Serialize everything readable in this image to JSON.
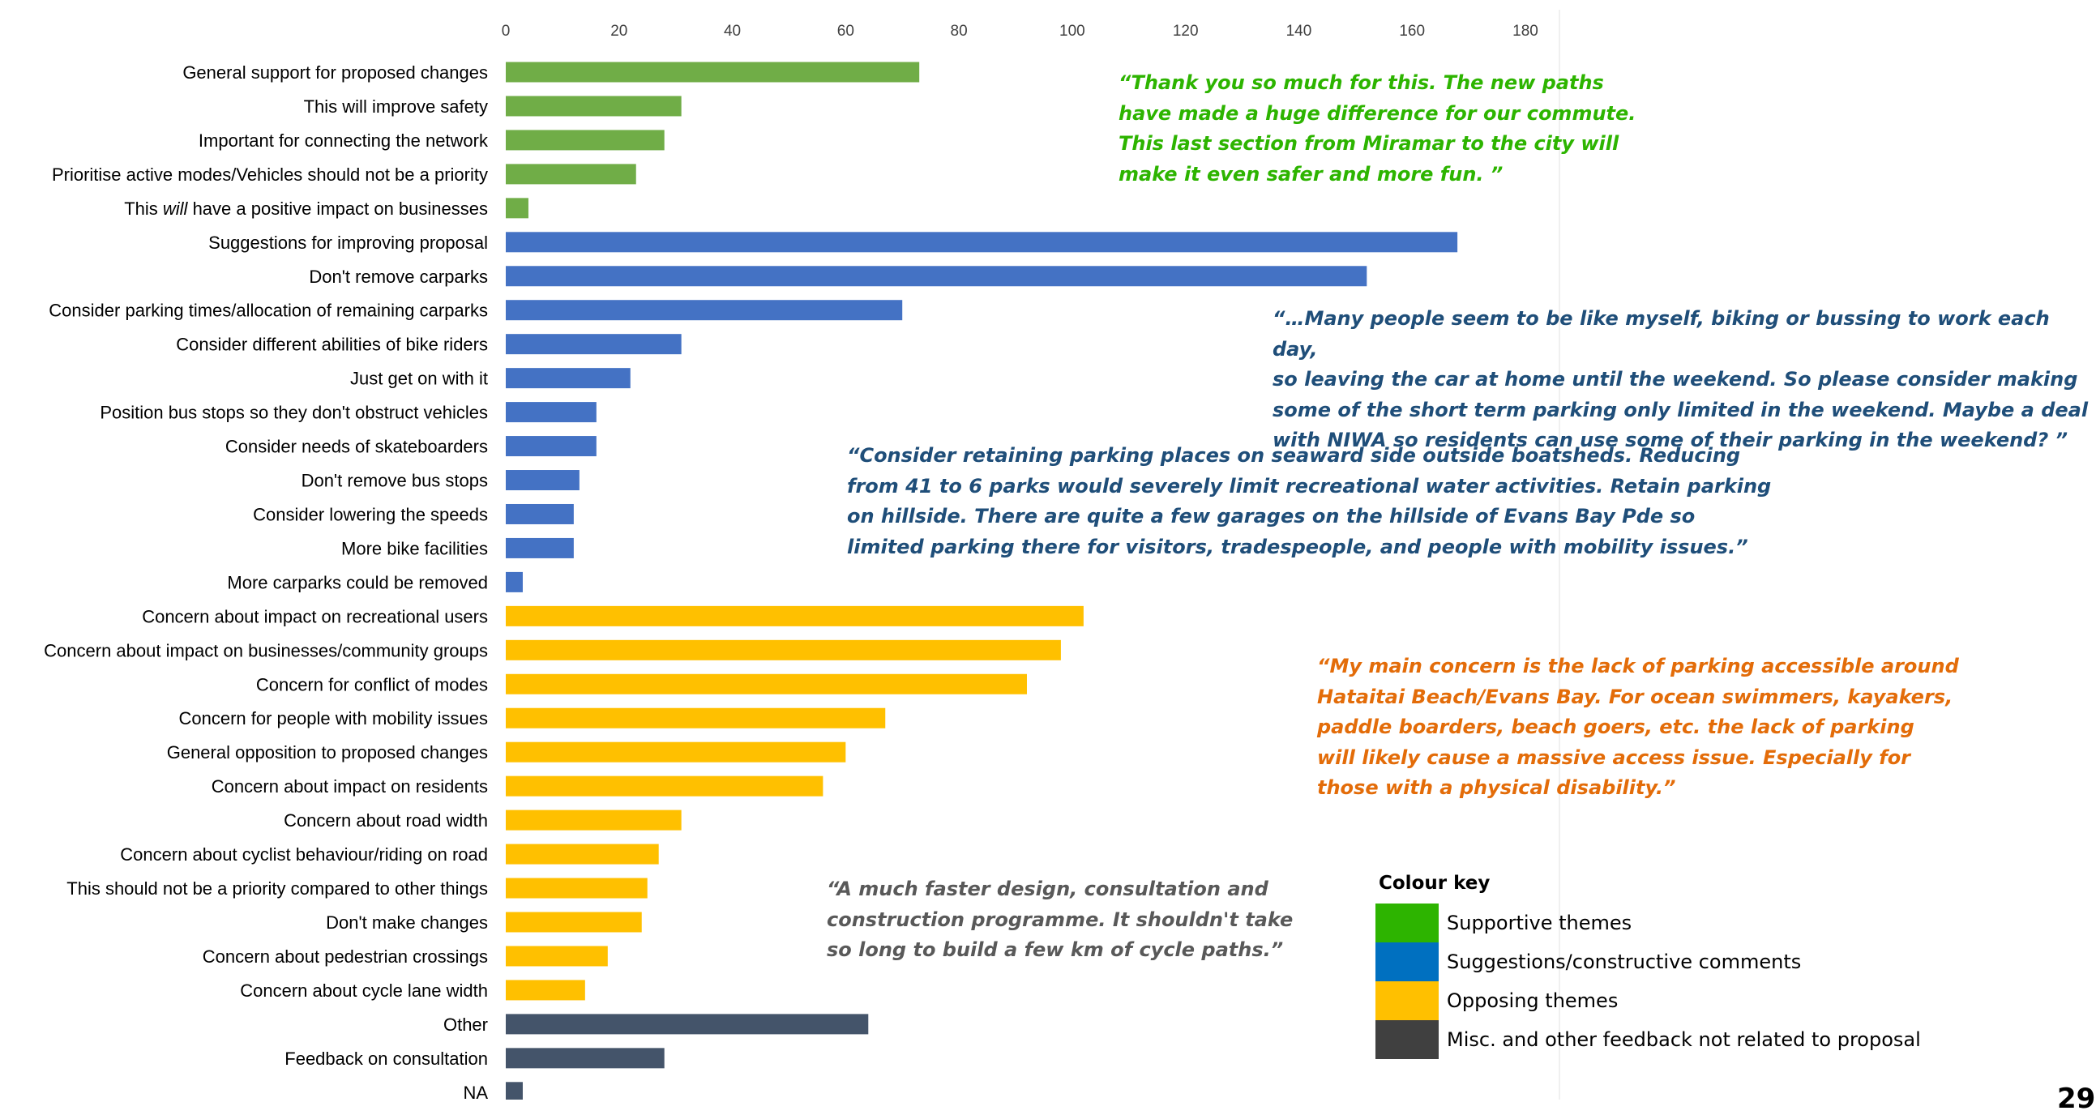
{
  "chart_data": {
    "type": "bar",
    "orientation": "horizontal",
    "xlim": [
      0,
      180
    ],
    "x_ticks": [
      0,
      20,
      40,
      60,
      80,
      100,
      120,
      140,
      160,
      180
    ],
    "grid": false,
    "categories": [
      {
        "pre": "General support for proposed changes",
        "em": "",
        "post": "",
        "value": 73,
        "group": "supportive"
      },
      {
        "pre": "This will improve safety",
        "em": "",
        "post": "",
        "value": 31,
        "group": "supportive"
      },
      {
        "pre": "Important for connecting the network",
        "em": "",
        "post": "",
        "value": 28,
        "group": "supportive"
      },
      {
        "pre": "Prioritise active modes/Vehicles should not be a priority",
        "em": "",
        "post": "",
        "value": 23,
        "group": "supportive"
      },
      {
        "pre": "This ",
        "em": "will",
        "post": " have a positive impact on businesses",
        "value": 4,
        "group": "supportive"
      },
      {
        "pre": "Suggestions for improving proposal",
        "em": "",
        "post": "",
        "value": 168,
        "group": "suggestions"
      },
      {
        "pre": "Don't remove carparks",
        "em": "",
        "post": "",
        "value": 152,
        "group": "suggestions"
      },
      {
        "pre": "Consider parking times/allocation of remaining carparks",
        "em": "",
        "post": "",
        "value": 70,
        "group": "suggestions"
      },
      {
        "pre": "Consider different abilities of bike riders",
        "em": "",
        "post": "",
        "value": 31,
        "group": "suggestions"
      },
      {
        "pre": "Just get on with it",
        "em": "",
        "post": "",
        "value": 22,
        "group": "suggestions"
      },
      {
        "pre": "Position bus stops so they don't obstruct vehicles",
        "em": "",
        "post": "",
        "value": 16,
        "group": "suggestions"
      },
      {
        "pre": "Consider needs of skateboarders",
        "em": "",
        "post": "",
        "value": 16,
        "group": "suggestions"
      },
      {
        "pre": "Don't remove bus stops",
        "em": "",
        "post": "",
        "value": 13,
        "group": "suggestions"
      },
      {
        "pre": "Consider lowering the speeds",
        "em": "",
        "post": "",
        "value": 12,
        "group": "suggestions"
      },
      {
        "pre": "More bike facilities",
        "em": "",
        "post": "",
        "value": 12,
        "group": "suggestions"
      },
      {
        "pre": "More carparks could be removed",
        "em": "",
        "post": "",
        "value": 3,
        "group": "suggestions"
      },
      {
        "pre": "Concern about impact on recreational users",
        "em": "",
        "post": "",
        "value": 102,
        "group": "opposing"
      },
      {
        "pre": "Concern about impact on businesses/community groups",
        "em": "",
        "post": "",
        "value": 98,
        "group": "opposing"
      },
      {
        "pre": "Concern for conflict of modes",
        "em": "",
        "post": "",
        "value": 92,
        "group": "opposing"
      },
      {
        "pre": "Concern for people with mobility issues",
        "em": "",
        "post": "",
        "value": 67,
        "group": "opposing"
      },
      {
        "pre": "General opposition to proposed changes",
        "em": "",
        "post": "",
        "value": 60,
        "group": "opposing"
      },
      {
        "pre": "Concern about impact on residents",
        "em": "",
        "post": "",
        "value": 56,
        "group": "opposing"
      },
      {
        "pre": "Concern about road width",
        "em": "",
        "post": "",
        "value": 31,
        "group": "opposing"
      },
      {
        "pre": "Concern about cyclist behaviour/riding on road",
        "em": "",
        "post": "",
        "value": 27,
        "group": "opposing"
      },
      {
        "pre": "This should not be a priority compared to other things",
        "em": "",
        "post": "",
        "value": 25,
        "group": "opposing"
      },
      {
        "pre": "Don't make changes",
        "em": "",
        "post": "",
        "value": 24,
        "group": "opposing"
      },
      {
        "pre": "Concern about pedestrian crossings",
        "em": "",
        "post": "",
        "value": 18,
        "group": "opposing"
      },
      {
        "pre": "Concern about cycle lane width",
        "em": "",
        "post": "",
        "value": 14,
        "group": "opposing"
      },
      {
        "pre": "Other",
        "em": "",
        "post": "",
        "value": 64,
        "group": "misc"
      },
      {
        "pre": "Feedback on consultation",
        "em": "",
        "post": "",
        "value": 28,
        "group": "misc"
      },
      {
        "pre": "NA",
        "em": "",
        "post": "",
        "value": 3,
        "group": "misc"
      }
    ],
    "bar_colors": {
      "supportive": "#70ad47",
      "suggestions": "#4472c4",
      "opposing": "#ffc000",
      "misc": "#44546a"
    }
  },
  "quotes": {
    "supportive": "“Thank you so much for this. The new paths\nhave made a huge difference for our commute.\nThis last section from Miramar to the city will\nmake it even safer and more fun. ”",
    "parking_weekend": "“…Many people seem to be like myself, biking or bussing to work each day,\nso leaving the car at home until the weekend. So please consider making\nsome of the short term parking only limited in the weekend. Maybe a deal\nwith NIWA so residents can use some of their parking in the weekend? ”",
    "boatsheds": "“Consider retaining parking places on seaward side outside boatsheds. Reducing\nfrom 41 to 6 parks would severely limit recreational water activities. Retain parking\non hillside. There are quite a few garages on the hillside of Evans Bay Pde so\nlimited parking there for visitors, tradespeople, and people with mobility issues.”",
    "concern": "“My main concern is the lack of parking accessible around\nHataitai Beach/Evans Bay. For ocean swimmers, kayakers,\npaddle boarders, beach goers, etc. the lack of parking\nwill likely cause a massive access issue. Especially for\nthose with a physical disability.”",
    "faster": "“A much faster design, consultation and\nconstruction programme. It shouldn't take\nso long to build a few km of cycle paths.”"
  },
  "colour_key": {
    "title": "Colour key",
    "items": [
      {
        "label": "Supportive themes",
        "color": "#2db400"
      },
      {
        "label": "Suggestions/constructive comments",
        "color": "#0070c0"
      },
      {
        "label": "Opposing themes",
        "color": "#ffc000"
      },
      {
        "label": "Misc. and other feedback not related to proposal",
        "color": "#404040"
      }
    ]
  },
  "page_number": "29"
}
